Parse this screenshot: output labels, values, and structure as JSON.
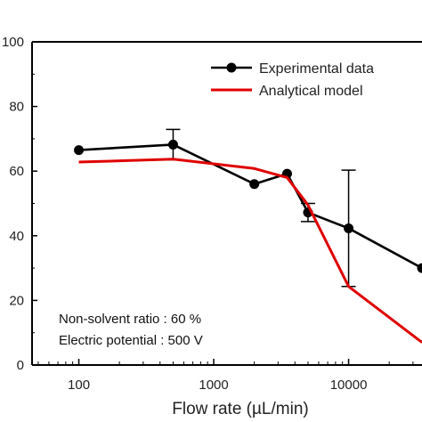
{
  "chart_data": {
    "type": "line",
    "title": "",
    "xlabel": "Flow rate (µL/min)",
    "ylabel": "",
    "xscale": "log",
    "xlim": [
      45,
      35000
    ],
    "ylim": [
      0,
      100
    ],
    "x_ticks": [
      100,
      1000,
      10000
    ],
    "x_tick_labels": [
      "100",
      "1000",
      "10000"
    ],
    "y_ticks": [
      0,
      20,
      40,
      60,
      80,
      100
    ],
    "y_tick_labels": [
      "0",
      "20",
      "40",
      "60",
      "80",
      "100"
    ],
    "legend_position": "top-right",
    "grid": false,
    "series": [
      {
        "name": "Experimental data",
        "color": "#000000",
        "marker": "circle",
        "points": [
          {
            "x": 100,
            "y": 66.5
          },
          {
            "x": 500,
            "y": 68.2,
            "err": 4.7
          },
          {
            "x": 2000,
            "y": 56.0
          },
          {
            "x": 3500,
            "y": 59.2
          },
          {
            "x": 5000,
            "y": 47.2,
            "err": 2.8
          },
          {
            "x": 10000,
            "y": 42.3,
            "err": 18.0
          },
          {
            "x": 35000,
            "y": 30.0
          }
        ]
      },
      {
        "name": "Analytical model",
        "color": "#e00000",
        "marker": "none",
        "points": [
          {
            "x": 100,
            "y": 62.8
          },
          {
            "x": 500,
            "y": 63.7
          },
          {
            "x": 2000,
            "y": 60.8
          },
          {
            "x": 3500,
            "y": 58.0
          },
          {
            "x": 5000,
            "y": 49.5
          },
          {
            "x": 10000,
            "y": 24.3
          },
          {
            "x": 35000,
            "y": 7.0
          }
        ]
      }
    ],
    "annotations": [
      "Non-solvent ratio : 60 %",
      "Electric potential : 500 V"
    ]
  }
}
